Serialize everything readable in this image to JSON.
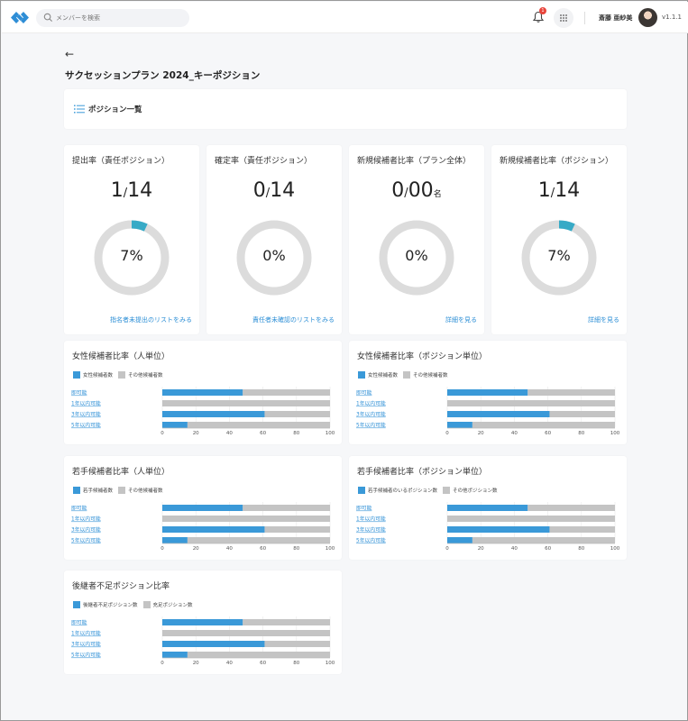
{
  "header": {
    "search_placeholder": "メンバーを検索",
    "notification_count": "1",
    "user_name": "斎藤 亜紗美",
    "version": "v1.1.1"
  },
  "page": {
    "back_label": "←",
    "title": "サクセッションプラン 2024_キーポジション",
    "position_list_label": "ポジション一覧"
  },
  "colors": {
    "accent": "#3a99d8",
    "other": "#c4c4c4",
    "track": "#dcdcdc",
    "link": "#2d8fd6"
  },
  "stats": [
    {
      "title": "提出率（責任ポジション）",
      "numerator": "1",
      "denominator": "14",
      "unit": "",
      "percent_label": "7%",
      "percent": 7,
      "link": "指名者未提出のリストをみる"
    },
    {
      "title": "確定率（責任ポジション）",
      "numerator": "0",
      "denominator": "14",
      "unit": "",
      "percent_label": "0%",
      "percent": 0,
      "link": "責任者未確認のリストをみる"
    },
    {
      "title": "新規候補者比率（プラン全体）",
      "numerator": "0",
      "denominator": "00",
      "unit": "名",
      "percent_label": "0%",
      "percent": 0,
      "link": "詳細を見る"
    },
    {
      "title": "新規候補者比率（ポジション）",
      "numerator": "1",
      "denominator": "14",
      "unit": "",
      "percent_label": "7%",
      "percent": 7,
      "link": "詳細を見る"
    }
  ],
  "chart_data": [
    {
      "type": "bar",
      "orientation": "horizontal",
      "stacked": true,
      "title": "女性候補者比率（人単位）",
      "categories": [
        "即可能",
        "1年以内可能",
        "3年以内可能",
        "5年以内可能"
      ],
      "series": [
        {
          "name": "女性候補者数",
          "values": [
            48,
            0,
            61,
            15
          ]
        },
        {
          "name": "その他候補者数",
          "values": [
            52,
            100,
            39,
            85
          ]
        }
      ],
      "xlim": [
        0,
        100
      ],
      "xticks": [
        0,
        20,
        40,
        60,
        80,
        100
      ],
      "legend": "top-left"
    },
    {
      "type": "bar",
      "orientation": "horizontal",
      "stacked": true,
      "title": "女性候補者比率（ポジション単位）",
      "categories": [
        "即可能",
        "1年以内可能",
        "3年以内可能",
        "5年以内可能"
      ],
      "series": [
        {
          "name": "女性候補者数",
          "values": [
            48,
            0,
            61,
            15
          ]
        },
        {
          "name": "その他候補者数",
          "values": [
            52,
            100,
            39,
            85
          ]
        }
      ],
      "xlim": [
        0,
        100
      ],
      "xticks": [
        0,
        20,
        40,
        60,
        80,
        100
      ],
      "legend": "top-left"
    },
    {
      "type": "bar",
      "orientation": "horizontal",
      "stacked": true,
      "title": "若手候補者比率（人単位）",
      "categories": [
        "即可能",
        "1年以内可能",
        "3年以内可能",
        "5年以内可能"
      ],
      "series": [
        {
          "name": "若手候補者数",
          "values": [
            48,
            0,
            61,
            15
          ]
        },
        {
          "name": "その他候補者数",
          "values": [
            52,
            100,
            39,
            85
          ]
        }
      ],
      "xlim": [
        0,
        100
      ],
      "xticks": [
        0,
        20,
        40,
        60,
        80,
        100
      ],
      "legend": "top-left"
    },
    {
      "type": "bar",
      "orientation": "horizontal",
      "stacked": true,
      "title": "若手候補者比率（ポジション単位）",
      "categories": [
        "即可能",
        "1年以内可能",
        "3年以内可能",
        "5年以内可能"
      ],
      "series": [
        {
          "name": "若手候補者のいるポジション数",
          "values": [
            48,
            0,
            61,
            15
          ]
        },
        {
          "name": "その他ポジション数",
          "values": [
            52,
            100,
            39,
            85
          ]
        }
      ],
      "xlim": [
        0,
        100
      ],
      "xticks": [
        0,
        20,
        40,
        60,
        80,
        100
      ],
      "legend": "top-left"
    },
    {
      "type": "bar",
      "orientation": "horizontal",
      "stacked": true,
      "title": "後継者不足ポジション比率",
      "categories": [
        "即可能",
        "1年以内可能",
        "3年以内可能",
        "5年以内可能"
      ],
      "series": [
        {
          "name": "後継者不足ポジション数",
          "values": [
            48,
            0,
            61,
            15
          ]
        },
        {
          "name": "充足ポジション数",
          "values": [
            52,
            100,
            39,
            85
          ]
        }
      ],
      "xlim": [
        0,
        100
      ],
      "xticks": [
        0,
        20,
        40,
        60,
        80,
        100
      ],
      "legend": "top-left"
    }
  ]
}
